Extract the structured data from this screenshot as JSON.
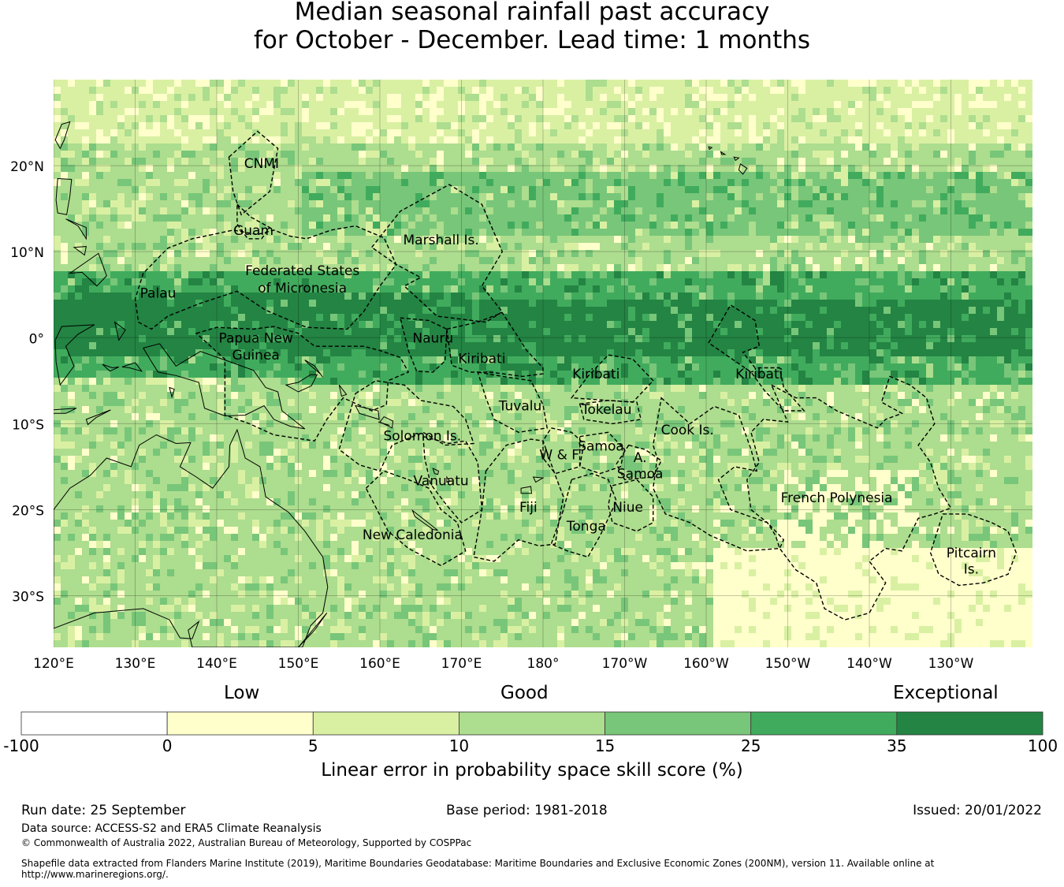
{
  "title": {
    "line1": "Median seasonal rainfall past accuracy",
    "line2": "for October - December. Lead time: 1 months"
  },
  "map": {
    "lat_ticks": [
      {
        "lat": 20,
        "label": "20°N"
      },
      {
        "lat": 10,
        "label": "10°N"
      },
      {
        "lat": 0,
        "label": "0°"
      },
      {
        "lat": -10,
        "label": "10°S"
      },
      {
        "lat": -20,
        "label": "20°S"
      },
      {
        "lat": -30,
        "label": "30°S"
      }
    ],
    "lon_ticks": [
      {
        "lon": 120,
        "label": "120°E"
      },
      {
        "lon": 130,
        "label": "130°E"
      },
      {
        "lon": 140,
        "label": "140°E"
      },
      {
        "lon": 150,
        "label": "150°E"
      },
      {
        "lon": 160,
        "label": "160°E"
      },
      {
        "lon": 170,
        "label": "170°E"
      },
      {
        "lon": 180,
        "label": "180°"
      },
      {
        "lon": 190,
        "label": "170°W"
      },
      {
        "lon": 200,
        "label": "160°W"
      },
      {
        "lon": 210,
        "label": "150°W"
      },
      {
        "lon": 220,
        "label": "140°W"
      },
      {
        "lon": 230,
        "label": "130°W"
      }
    ],
    "regions": [
      {
        "name": "CNMI",
        "lon": 145.5,
        "lat": 20.3
      },
      {
        "name": "Guam",
        "lon": 144.5,
        "lat": 12.5
      },
      {
        "name": "Marshall Is.",
        "lon": 167.5,
        "lat": 11.4
      },
      {
        "name": "Federated States",
        "lon": 150.5,
        "lat": 7.8
      },
      {
        "name": "of Micronesia",
        "lon": 150.5,
        "lat": 5.8
      },
      {
        "name": "Palau",
        "lon": 132.8,
        "lat": 5.2
      },
      {
        "name": "Papua New",
        "lon": 144.8,
        "lat": 0
      },
      {
        "name": "Guinea",
        "lon": 144.8,
        "lat": -2
      },
      {
        "name": "Nauru",
        "lon": 166.5,
        "lat": 0
      },
      {
        "name": "Kiribati",
        "lon": 172.5,
        "lat": -2.4
      },
      {
        "name": "Kiribati",
        "lon": 186.5,
        "lat": -4.2
      },
      {
        "name": "Kiribati",
        "lon": 206.5,
        "lat": -4.2
      },
      {
        "name": "Tuvalu",
        "lon": 177.2,
        "lat": -7.9
      },
      {
        "name": "Tokelau",
        "lon": 187.8,
        "lat": -8.3
      },
      {
        "name": "Solomon Is.",
        "lon": 165.2,
        "lat": -11.4
      },
      {
        "name": "Cook Is.",
        "lon": 197.7,
        "lat": -10.7
      },
      {
        "name": "Samoa",
        "lon": 187.1,
        "lat": -12.6
      },
      {
        "name": "W & F",
        "lon": 182.0,
        "lat": -13.6
      },
      {
        "name": "A.",
        "lon": 191.9,
        "lat": -13.9
      },
      {
        "name": "Samoa",
        "lon": 191.9,
        "lat": -15.8
      },
      {
        "name": "Vanuatu",
        "lon": 167.5,
        "lat": -16.6
      },
      {
        "name": "French Polynesia",
        "lon": 216.0,
        "lat": -18.6
      },
      {
        "name": "Fiji",
        "lon": 178.2,
        "lat": -19.7
      },
      {
        "name": "Niue",
        "lon": 190.4,
        "lat": -19.7
      },
      {
        "name": "Tonga",
        "lon": 185.3,
        "lat": -21.9
      },
      {
        "name": "New Caledonia",
        "lon": 164.0,
        "lat": -22.9
      },
      {
        "name": "Pitcairn",
        "lon": 232.5,
        "lat": -25.0
      },
      {
        "name": "Is.",
        "lon": 232.5,
        "lat": -26.9
      }
    ]
  },
  "colorbar": {
    "categories": [
      "Low",
      "Good",
      "Exceptional"
    ],
    "bins": [
      {
        "color": "#ffffff"
      },
      {
        "color": "#ffffcc"
      },
      {
        "color": "#d9f0a3"
      },
      {
        "color": "#addd8e"
      },
      {
        "color": "#78c679"
      },
      {
        "color": "#41ab5d"
      },
      {
        "color": "#238443"
      }
    ],
    "ticks": [
      "-100",
      "0",
      "5",
      "10",
      "15",
      "25",
      "35",
      "100"
    ],
    "label": "Linear error in probability space skill score (%)"
  },
  "footer": {
    "run_date": "Run date: 25 September",
    "base_period": "Base period: 1981-2018",
    "issued": "Issued: 20/01/2022",
    "data_source": "Data source: ACCESS-S2 and ERA5 Climate Reanalysis",
    "copyright": "© Commonwealth of Australia 2022, Australian Bureau of Meteorology, Supported by COSPPac",
    "shapefile_line1": "Shapefile data extracted from Flanders Marine Institute (2019), Maritime Boundaries Geodatabase: Maritime Boundaries and Exclusive Economic Zones (200NM), version 11. Available online at",
    "shapefile_line2": "http://www.marineregions.org/."
  }
}
